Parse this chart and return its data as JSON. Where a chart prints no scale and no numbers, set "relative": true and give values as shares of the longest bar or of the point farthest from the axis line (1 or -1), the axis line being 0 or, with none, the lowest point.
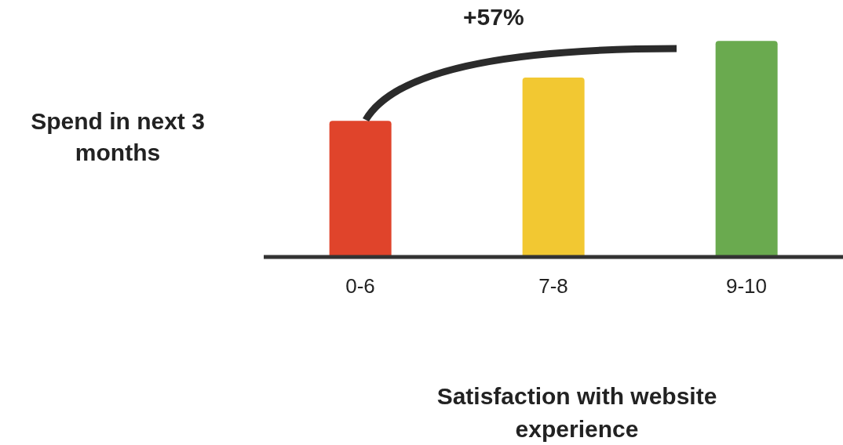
{
  "chart_data": {
    "type": "bar",
    "relative": true,
    "categories": [
      "0-6",
      "7-8",
      "9-10"
    ],
    "values": [
      0.63,
      0.83,
      1
    ],
    "colors": [
      "#e0442b",
      "#f2c832",
      "#6aaa4f"
    ],
    "xlabel": "Satisfaction with website experience",
    "ylabel": "Spend in next 3 months",
    "annotations": [
      "+57%"
    ]
  }
}
